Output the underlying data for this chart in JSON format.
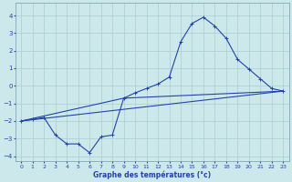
{
  "title": "Graphe des températures (°c)",
  "bg_color": "#cce8ea",
  "grid_color": "#aacdd0",
  "line_color": "#2244aa",
  "xlim": [
    -0.5,
    23.5
  ],
  "ylim": [
    -4.3,
    4.7
  ],
  "yticks": [
    -4,
    -3,
    -2,
    -1,
    0,
    1,
    2,
    3,
    4
  ],
  "xticks": [
    0,
    1,
    2,
    3,
    4,
    5,
    6,
    7,
    8,
    9,
    10,
    11,
    12,
    13,
    14,
    15,
    16,
    17,
    18,
    19,
    20,
    21,
    22,
    23
  ],
  "curve1_x": [
    0,
    1,
    2,
    3,
    4,
    5,
    6,
    7,
    8,
    9,
    10,
    11,
    12,
    13,
    14,
    15,
    16,
    17,
    18,
    19,
    20,
    21,
    22,
    23
  ],
  "curve1_y": [
    -2.0,
    -1.9,
    -1.8,
    -2.8,
    -3.3,
    -3.3,
    -3.8,
    -2.9,
    -2.8,
    -0.7,
    -0.4,
    -0.15,
    0.1,
    0.5,
    2.5,
    3.55,
    3.9,
    3.4,
    2.7,
    1.5,
    0.95,
    0.4,
    -0.15,
    -0.3
  ],
  "curve2_x": [
    0,
    23
  ],
  "curve2_y": [
    -2.0,
    -0.3
  ],
  "curve3_x": [
    0,
    9,
    23
  ],
  "curve3_y": [
    -2.0,
    -0.7,
    -0.3
  ]
}
